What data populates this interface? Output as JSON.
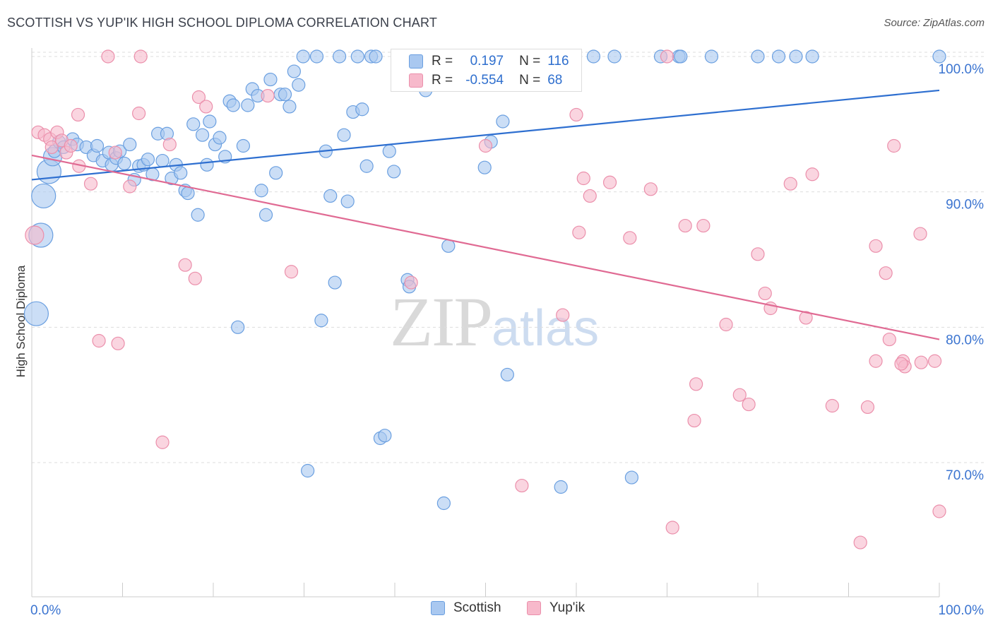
{
  "header": {
    "title": "SCOTTISH VS YUP'IK HIGH SCHOOL DIPLOMA CORRELATION CHART",
    "source": "Source: ZipAtlas.com"
  },
  "watermark": {
    "zip": "ZIP",
    "atlas": "atlas"
  },
  "colors": {
    "scottish_fill": "#a9c8f0",
    "scottish_stroke": "#6a9fe0",
    "scottish_line": "#2e6fd0",
    "yupik_fill": "#f7b9cb",
    "yupik_stroke": "#eb8fab",
    "yupik_line": "#e06a93",
    "axis_label": "#3b74d0",
    "grid": "#dddddd"
  },
  "stats": {
    "rows": [
      {
        "r_label": "R =",
        "r_value": "0.197",
        "n_label": "N =",
        "n_value": "116"
      },
      {
        "r_label": "R =",
        "r_value": "-0.554",
        "n_label": "N =",
        "n_value": "68"
      }
    ]
  },
  "legend": {
    "items": [
      "Scottish",
      "Yup'ik"
    ]
  },
  "chart_data": {
    "type": "scatter",
    "title": "SCOTTISH VS YUP'IK HIGH SCHOOL DIPLOMA CORRELATION CHART",
    "xlabel": "",
    "ylabel": "High School Diploma",
    "xlim": [
      0,
      100
    ],
    "ylim": [
      60,
      102
    ],
    "x_tick_labels": [
      "0.0%",
      "100.0%"
    ],
    "y_ticks": [
      70,
      80,
      90,
      100
    ],
    "y_tick_labels": [
      "70.0%",
      "80.0%",
      "90.0%",
      "100.0%"
    ],
    "grid": true,
    "legend_position": "bottom",
    "series": [
      {
        "name": "Scottish",
        "R": 0.197,
        "N": 116,
        "trend": {
          "x": [
            0,
            100
          ],
          "y": [
            90.9,
            97.5
          ]
        },
        "points": [
          {
            "x": 0.5,
            "y": 81.0,
            "s": 3
          },
          {
            "x": 1.0,
            "y": 86.8,
            "s": 3
          },
          {
            "x": 1.3,
            "y": 89.7,
            "s": 3
          },
          {
            "x": 1.9,
            "y": 91.5,
            "s": 3
          },
          {
            "x": 2.3,
            "y": 92.6,
            "s": 2
          },
          {
            "x": 2.5,
            "y": 93.0,
            "s": 1
          },
          {
            "x": 3.0,
            "y": 93.7,
            "s": 1
          },
          {
            "x": 3.5,
            "y": 93.3,
            "s": 1
          },
          {
            "x": 4.5,
            "y": 93.9,
            "s": 1
          },
          {
            "x": 5.0,
            "y": 93.5,
            "s": 1
          },
          {
            "x": 6.0,
            "y": 93.3,
            "s": 1
          },
          {
            "x": 6.8,
            "y": 92.7,
            "s": 1
          },
          {
            "x": 7.2,
            "y": 93.4,
            "s": 1
          },
          {
            "x": 7.8,
            "y": 92.3,
            "s": 1
          },
          {
            "x": 8.5,
            "y": 92.9,
            "s": 1
          },
          {
            "x": 8.8,
            "y": 92.0,
            "s": 1
          },
          {
            "x": 9.3,
            "y": 92.5,
            "s": 1
          },
          {
            "x": 9.7,
            "y": 93.0,
            "s": 1
          },
          {
            "x": 10.2,
            "y": 92.1,
            "s": 1
          },
          {
            "x": 10.8,
            "y": 93.5,
            "s": 1
          },
          {
            "x": 11.3,
            "y": 90.9,
            "s": 1
          },
          {
            "x": 11.8,
            "y": 91.9,
            "s": 1
          },
          {
            "x": 12.3,
            "y": 92.0,
            "s": 1
          },
          {
            "x": 12.8,
            "y": 92.4,
            "s": 1
          },
          {
            "x": 13.3,
            "y": 91.3,
            "s": 1
          },
          {
            "x": 13.9,
            "y": 94.3,
            "s": 1
          },
          {
            "x": 14.4,
            "y": 92.3,
            "s": 1
          },
          {
            "x": 14.9,
            "y": 94.3,
            "s": 1
          },
          {
            "x": 15.4,
            "y": 91.0,
            "s": 1
          },
          {
            "x": 15.9,
            "y": 92.0,
            "s": 1
          },
          {
            "x": 16.4,
            "y": 91.4,
            "s": 1
          },
          {
            "x": 16.9,
            "y": 90.1,
            "s": 1
          },
          {
            "x": 17.2,
            "y": 89.9,
            "s": 1
          },
          {
            "x": 17.8,
            "y": 95.0,
            "s": 1
          },
          {
            "x": 18.3,
            "y": 88.3,
            "s": 1
          },
          {
            "x": 18.8,
            "y": 94.2,
            "s": 1
          },
          {
            "x": 19.3,
            "y": 92.0,
            "s": 1
          },
          {
            "x": 19.6,
            "y": 95.2,
            "s": 1
          },
          {
            "x": 20.2,
            "y": 93.5,
            "s": 1
          },
          {
            "x": 20.7,
            "y": 94.0,
            "s": 1
          },
          {
            "x": 21.3,
            "y": 92.6,
            "s": 1
          },
          {
            "x": 21.8,
            "y": 96.7,
            "s": 1
          },
          {
            "x": 22.2,
            "y": 96.4,
            "s": 1
          },
          {
            "x": 22.7,
            "y": 80.0,
            "s": 1
          },
          {
            "x": 23.3,
            "y": 93.4,
            "s": 1
          },
          {
            "x": 23.8,
            "y": 96.4,
            "s": 1
          },
          {
            "x": 24.3,
            "y": 97.6,
            "s": 1
          },
          {
            "x": 24.9,
            "y": 97.1,
            "s": 1
          },
          {
            "x": 25.3,
            "y": 90.1,
            "s": 1
          },
          {
            "x": 25.8,
            "y": 88.3,
            "s": 1
          },
          {
            "x": 26.3,
            "y": 98.3,
            "s": 1
          },
          {
            "x": 26.9,
            "y": 91.4,
            "s": 1
          },
          {
            "x": 27.4,
            "y": 97.2,
            "s": 1
          },
          {
            "x": 27.9,
            "y": 97.2,
            "s": 1
          },
          {
            "x": 28.4,
            "y": 96.3,
            "s": 1
          },
          {
            "x": 28.9,
            "y": 98.9,
            "s": 1
          },
          {
            "x": 29.4,
            "y": 97.9,
            "s": 1
          },
          {
            "x": 29.9,
            "y": 100.0,
            "s": 1
          },
          {
            "x": 30.4,
            "y": 69.4,
            "s": 1
          },
          {
            "x": 31.4,
            "y": 100.0,
            "s": 1
          },
          {
            "x": 31.9,
            "y": 80.5,
            "s": 1
          },
          {
            "x": 32.4,
            "y": 93.0,
            "s": 1
          },
          {
            "x": 32.9,
            "y": 89.7,
            "s": 1
          },
          {
            "x": 33.4,
            "y": 83.3,
            "s": 1
          },
          {
            "x": 33.9,
            "y": 100.0,
            "s": 1
          },
          {
            "x": 34.4,
            "y": 94.2,
            "s": 1
          },
          {
            "x": 34.8,
            "y": 89.3,
            "s": 1
          },
          {
            "x": 35.4,
            "y": 95.9,
            "s": 1
          },
          {
            "x": 35.9,
            "y": 100.0,
            "s": 1
          },
          {
            "x": 36.4,
            "y": 96.1,
            "s": 1
          },
          {
            "x": 36.9,
            "y": 91.9,
            "s": 1
          },
          {
            "x": 37.4,
            "y": 100.0,
            "s": 1
          },
          {
            "x": 37.9,
            "y": 100.0,
            "s": 1
          },
          {
            "x": 38.4,
            "y": 71.8,
            "s": 1
          },
          {
            "x": 38.9,
            "y": 72.0,
            "s": 1
          },
          {
            "x": 39.4,
            "y": 93.0,
            "s": 1
          },
          {
            "x": 39.9,
            "y": 91.5,
            "s": 1
          },
          {
            "x": 40.9,
            "y": 100.0,
            "s": 1
          },
          {
            "x": 41.4,
            "y": 83.5,
            "s": 1
          },
          {
            "x": 41.6,
            "y": 83.0,
            "s": 1
          },
          {
            "x": 42.4,
            "y": 100.0,
            "s": 1
          },
          {
            "x": 42.9,
            "y": 98.5,
            "s": 1
          },
          {
            "x": 43.4,
            "y": 97.5,
            "s": 1
          },
          {
            "x": 44.4,
            "y": 100.0,
            "s": 1
          },
          {
            "x": 45.4,
            "y": 67.0,
            "s": 1
          },
          {
            "x": 45.9,
            "y": 86.0,
            "s": 1
          },
          {
            "x": 47.0,
            "y": 100.0,
            "s": 1
          },
          {
            "x": 48.5,
            "y": 100.0,
            "s": 1
          },
          {
            "x": 49.4,
            "y": 98.0,
            "s": 1
          },
          {
            "x": 49.9,
            "y": 91.8,
            "s": 1
          },
          {
            "x": 50.6,
            "y": 93.7,
            "s": 1
          },
          {
            "x": 51.9,
            "y": 95.2,
            "s": 1
          },
          {
            "x": 52.4,
            "y": 76.5,
            "s": 1
          },
          {
            "x": 53.4,
            "y": 100.0,
            "s": 1
          },
          {
            "x": 54.4,
            "y": 98.0,
            "s": 1
          },
          {
            "x": 55.0,
            "y": 100.0,
            "s": 1
          },
          {
            "x": 56.0,
            "y": 100.0,
            "s": 1
          },
          {
            "x": 58.3,
            "y": 68.2,
            "s": 1
          },
          {
            "x": 59.3,
            "y": 100.0,
            "s": 1
          },
          {
            "x": 61.9,
            "y": 100.0,
            "s": 1
          },
          {
            "x": 64.2,
            "y": 100.0,
            "s": 1
          },
          {
            "x": 66.1,
            "y": 68.9,
            "s": 1
          },
          {
            "x": 69.3,
            "y": 100.0,
            "s": 1
          },
          {
            "x": 71.3,
            "y": 100.0,
            "s": 1
          },
          {
            "x": 74.9,
            "y": 100.0,
            "s": 1
          },
          {
            "x": 80.0,
            "y": 100.0,
            "s": 1
          },
          {
            "x": 82.3,
            "y": 100.0,
            "s": 1
          },
          {
            "x": 84.2,
            "y": 100.0,
            "s": 1
          },
          {
            "x": 86.0,
            "y": 100.0,
            "s": 1
          },
          {
            "x": 100.0,
            "y": 100.0,
            "s": 1
          },
          {
            "x": 71.5,
            "y": 100.0,
            "s": 1
          }
        ]
      },
      {
        "name": "Yup'ik",
        "R": -0.554,
        "N": 68,
        "trend": {
          "x": [
            0,
            100
          ],
          "y": [
            92.7,
            79.1
          ]
        },
        "points": [
          {
            "x": 0.3,
            "y": 86.8,
            "s": 2
          },
          {
            "x": 0.7,
            "y": 94.4,
            "s": 1
          },
          {
            "x": 1.4,
            "y": 94.2,
            "s": 1
          },
          {
            "x": 2.0,
            "y": 93.9,
            "s": 1
          },
          {
            "x": 2.2,
            "y": 93.3,
            "s": 1
          },
          {
            "x": 2.8,
            "y": 94.4,
            "s": 1
          },
          {
            "x": 3.3,
            "y": 93.8,
            "s": 1
          },
          {
            "x": 3.8,
            "y": 92.9,
            "s": 1
          },
          {
            "x": 4.3,
            "y": 93.4,
            "s": 1
          },
          {
            "x": 5.1,
            "y": 95.7,
            "s": 1
          },
          {
            "x": 5.2,
            "y": 91.9,
            "s": 1
          },
          {
            "x": 6.5,
            "y": 90.6,
            "s": 1
          },
          {
            "x": 7.4,
            "y": 79.0,
            "s": 1
          },
          {
            "x": 8.4,
            "y": 100.0,
            "s": 1
          },
          {
            "x": 9.2,
            "y": 92.9,
            "s": 1
          },
          {
            "x": 9.5,
            "y": 78.8,
            "s": 1
          },
          {
            "x": 10.8,
            "y": 90.4,
            "s": 1
          },
          {
            "x": 11.8,
            "y": 95.8,
            "s": 1
          },
          {
            "x": 12.0,
            "y": 100.0,
            "s": 1
          },
          {
            "x": 14.4,
            "y": 71.5,
            "s": 1
          },
          {
            "x": 15.2,
            "y": 93.5,
            "s": 1
          },
          {
            "x": 16.9,
            "y": 84.6,
            "s": 1
          },
          {
            "x": 18.0,
            "y": 83.6,
            "s": 1
          },
          {
            "x": 18.4,
            "y": 97.0,
            "s": 1
          },
          {
            "x": 19.2,
            "y": 96.3,
            "s": 1
          },
          {
            "x": 26.0,
            "y": 97.1,
            "s": 1
          },
          {
            "x": 28.6,
            "y": 84.1,
            "s": 1
          },
          {
            "x": 41.8,
            "y": 83.3,
            "s": 1
          },
          {
            "x": 50.0,
            "y": 93.4,
            "s": 1
          },
          {
            "x": 54.0,
            "y": 68.3,
            "s": 1
          },
          {
            "x": 58.5,
            "y": 80.9,
            "s": 1
          },
          {
            "x": 60.0,
            "y": 95.7,
            "s": 1
          },
          {
            "x": 60.3,
            "y": 87.0,
            "s": 1
          },
          {
            "x": 60.8,
            "y": 91.0,
            "s": 1
          },
          {
            "x": 61.5,
            "y": 89.7,
            "s": 1
          },
          {
            "x": 63.7,
            "y": 90.7,
            "s": 1
          },
          {
            "x": 65.9,
            "y": 86.6,
            "s": 1
          },
          {
            "x": 68.2,
            "y": 90.2,
            "s": 1
          },
          {
            "x": 70.0,
            "y": 100.0,
            "s": 1
          },
          {
            "x": 70.6,
            "y": 65.2,
            "s": 1
          },
          {
            "x": 72.0,
            "y": 87.5,
            "s": 1
          },
          {
            "x": 73.0,
            "y": 73.1,
            "s": 1
          },
          {
            "x": 73.2,
            "y": 75.8,
            "s": 1
          },
          {
            "x": 74.0,
            "y": 87.5,
            "s": 1
          },
          {
            "x": 76.5,
            "y": 80.2,
            "s": 1
          },
          {
            "x": 78.0,
            "y": 75.0,
            "s": 1
          },
          {
            "x": 79.0,
            "y": 74.3,
            "s": 1
          },
          {
            "x": 80.0,
            "y": 85.4,
            "s": 1
          },
          {
            "x": 80.8,
            "y": 82.5,
            "s": 1
          },
          {
            "x": 81.4,
            "y": 81.4,
            "s": 1
          },
          {
            "x": 83.6,
            "y": 90.6,
            "s": 1
          },
          {
            "x": 85.3,
            "y": 80.7,
            "s": 1
          },
          {
            "x": 86.0,
            "y": 91.3,
            "s": 1
          },
          {
            "x": 88.2,
            "y": 74.2,
            "s": 1
          },
          {
            "x": 91.3,
            "y": 64.1,
            "s": 1
          },
          {
            "x": 92.1,
            "y": 74.1,
            "s": 1
          },
          {
            "x": 93.0,
            "y": 86.0,
            "s": 1
          },
          {
            "x": 93.0,
            "y": 77.5,
            "s": 1
          },
          {
            "x": 94.1,
            "y": 84.0,
            "s": 1
          },
          {
            "x": 94.5,
            "y": 79.1,
            "s": 1
          },
          {
            "x": 95.0,
            "y": 93.4,
            "s": 1
          },
          {
            "x": 96.0,
            "y": 77.5,
            "s": 1
          },
          {
            "x": 96.2,
            "y": 77.1,
            "s": 1
          },
          {
            "x": 97.9,
            "y": 86.9,
            "s": 1
          },
          {
            "x": 98.0,
            "y": 77.4,
            "s": 1
          },
          {
            "x": 99.5,
            "y": 77.5,
            "s": 1
          },
          {
            "x": 100.0,
            "y": 66.4,
            "s": 1
          },
          {
            "x": 95.8,
            "y": 77.3,
            "s": 1
          }
        ]
      }
    ]
  }
}
